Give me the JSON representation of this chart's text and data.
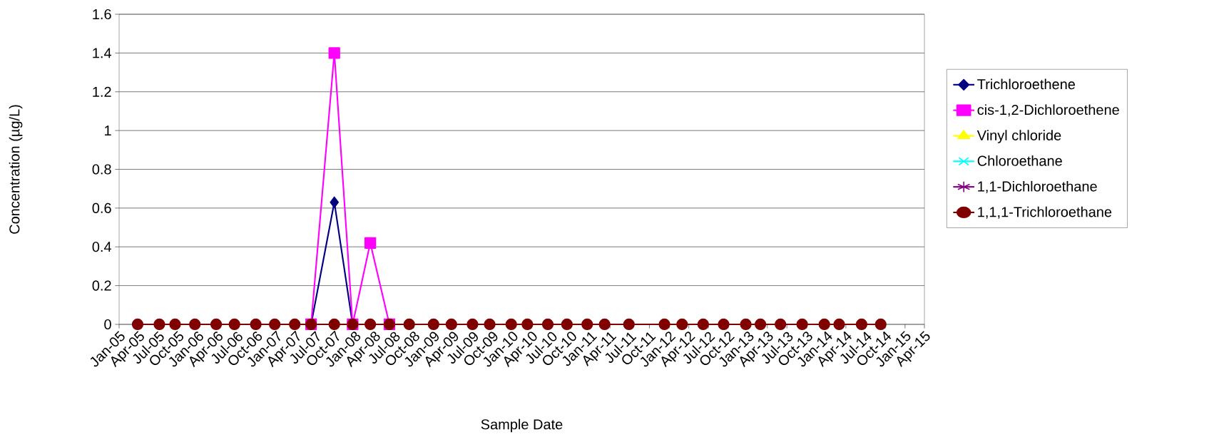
{
  "chart_data": {
    "type": "line",
    "xlabel": "Sample Date",
    "ylabel": "Concentration (µg/L)",
    "x": [
      "2005-03-28",
      "2005-07-07",
      "2005-09-18",
      "2005-12-19",
      "2006-03-28",
      "2006-06-21",
      "2006-09-28",
      "2006-12-25",
      "2007-03-28",
      "2007-06-12",
      "2007-09-28",
      "2007-12-22",
      "2008-03-13",
      "2008-06-10",
      "2008-09-10",
      "2009-01-01",
      "2009-03-25",
      "2009-07-01",
      "2009-09-19",
      "2009-12-28",
      "2010-03-13",
      "2010-06-16",
      "2010-09-13",
      "2010-12-16",
      "2011-03-07",
      "2011-06-28",
      "2011-12-10",
      "2012-03-01",
      "2012-06-07",
      "2012-09-10",
      "2012-12-22",
      "2013-02-28",
      "2013-06-01",
      "2013-09-10",
      "2013-12-22",
      "2014-03-01",
      "2014-06-13",
      "2014-09-10"
    ],
    "series": [
      {
        "name": "Trichloroethene",
        "color": "#000080",
        "marker": "diamond",
        "values": [
          null,
          null,
          null,
          null,
          null,
          null,
          null,
          null,
          null,
          0,
          0.63,
          0,
          null,
          null,
          null,
          null,
          null,
          null,
          null,
          null,
          null,
          null,
          null,
          null,
          null,
          null,
          null,
          null,
          null,
          null,
          null,
          null,
          null,
          null,
          null,
          null,
          null,
          null
        ]
      },
      {
        "name": "cis-1,2-Dichloroethene",
        "color": "#ff00ff",
        "marker": "square",
        "values": [
          null,
          null,
          null,
          null,
          null,
          null,
          null,
          null,
          null,
          0,
          1.4,
          0,
          0.42,
          0,
          null,
          null,
          null,
          null,
          null,
          null,
          null,
          null,
          null,
          null,
          null,
          null,
          null,
          null,
          null,
          null,
          null,
          null,
          null,
          null,
          null,
          null,
          null,
          null
        ]
      },
      {
        "name": "Vinyl chloride",
        "color": "#ffff00",
        "marker": "triangle",
        "values": [
          null,
          null,
          null,
          null,
          null,
          null,
          null,
          null,
          null,
          null,
          null,
          null,
          null,
          null,
          null,
          null,
          null,
          null,
          null,
          null,
          null,
          null,
          null,
          null,
          null,
          null,
          null,
          null,
          null,
          null,
          null,
          null,
          null,
          null,
          null,
          null,
          null,
          null
        ]
      },
      {
        "name": "Chloroethane",
        "color": "#00ffff",
        "marker": "cross",
        "values": [
          null,
          null,
          null,
          null,
          null,
          null,
          null,
          null,
          null,
          null,
          null,
          null,
          null,
          null,
          null,
          null,
          null,
          null,
          null,
          null,
          null,
          null,
          null,
          null,
          null,
          null,
          null,
          null,
          null,
          null,
          null,
          null,
          null,
          null,
          null,
          null,
          null,
          null
        ]
      },
      {
        "name": "1,1-Dichloroethane",
        "color": "#800080",
        "marker": "star",
        "values": [
          null,
          null,
          null,
          null,
          null,
          null,
          null,
          null,
          null,
          null,
          null,
          null,
          null,
          null,
          null,
          null,
          null,
          null,
          null,
          null,
          null,
          null,
          null,
          null,
          null,
          null,
          null,
          null,
          null,
          null,
          null,
          null,
          null,
          null,
          null,
          null,
          null,
          null
        ]
      },
      {
        "name": "1,1,1-Trichloroethane",
        "color": "#800000",
        "marker": "circle",
        "values": [
          0,
          0,
          0,
          0,
          0,
          0,
          0,
          0,
          0,
          0,
          0,
          0,
          0,
          0,
          0,
          0,
          0,
          0,
          0,
          0,
          0,
          0,
          0,
          0,
          0,
          0,
          0,
          0,
          0,
          0,
          0,
          0,
          0,
          0,
          0,
          0,
          0,
          0
        ]
      }
    ],
    "xlim": [
      "2005-01",
      "2015-04"
    ],
    "xticks": [
      {
        "value": "2005-01",
        "label": "Jan-05"
      },
      {
        "value": "2005-04",
        "label": "Apr-05"
      },
      {
        "value": "2005-07",
        "label": "Jul-05"
      },
      {
        "value": "2005-10",
        "label": "Oct-05"
      },
      {
        "value": "2006-01",
        "label": "Jan-06"
      },
      {
        "value": "2006-04",
        "label": "Apr-06"
      },
      {
        "value": "2006-07",
        "label": "Jul-06"
      },
      {
        "value": "2006-10",
        "label": "Oct-06"
      },
      {
        "value": "2007-01",
        "label": "Jan-07"
      },
      {
        "value": "2007-04",
        "label": "Apr-07"
      },
      {
        "value": "2007-07",
        "label": "Jul-07"
      },
      {
        "value": "2007-10",
        "label": "Oct-07"
      },
      {
        "value": "2008-01",
        "label": "Jan-08"
      },
      {
        "value": "2008-04",
        "label": "Apr-08"
      },
      {
        "value": "2008-07",
        "label": "Jul-08"
      },
      {
        "value": "2008-10",
        "label": "Oct-08"
      },
      {
        "value": "2009-01",
        "label": "Jan-09"
      },
      {
        "value": "2009-04",
        "label": "Apr-09"
      },
      {
        "value": "2009-07",
        "label": "Jul-09"
      },
      {
        "value": "2009-10",
        "label": "Oct-09"
      },
      {
        "value": "2010-01",
        "label": "Jan-10"
      },
      {
        "value": "2010-04",
        "label": "Apr-10"
      },
      {
        "value": "2010-07",
        "label": "Jul-10"
      },
      {
        "value": "2010-10",
        "label": "Oct-10"
      },
      {
        "value": "2011-01",
        "label": "Jan-11"
      },
      {
        "value": "2011-04",
        "label": "Apr-11"
      },
      {
        "value": "2011-07",
        "label": "Jul-11"
      },
      {
        "value": "2011-10",
        "label": "Oct-11"
      },
      {
        "value": "2012-01",
        "label": "Jan-12"
      },
      {
        "value": "2012-04",
        "label": "Apr-12"
      },
      {
        "value": "2012-07",
        "label": "Jul-12"
      },
      {
        "value": "2012-10",
        "label": "Oct-12"
      },
      {
        "value": "2013-01",
        "label": "Jan-13"
      },
      {
        "value": "2013-04",
        "label": "Apr-13"
      },
      {
        "value": "2013-07",
        "label": "Jul-13"
      },
      {
        "value": "2013-10",
        "label": "Oct-13"
      },
      {
        "value": "2014-01",
        "label": "Jan-14"
      },
      {
        "value": "2014-04",
        "label": "Apr-14"
      },
      {
        "value": "2014-07",
        "label": "Jul-14"
      },
      {
        "value": "2014-10",
        "label": "Oct-14"
      },
      {
        "value": "2015-01",
        "label": "Jan-15"
      },
      {
        "value": "2015-04",
        "label": "Apr-15"
      }
    ],
    "ylim": [
      0,
      1.6
    ],
    "yticks": [
      0,
      0.2,
      0.4,
      0.6,
      0.8,
      1,
      1.2,
      1.4,
      1.6
    ],
    "grid": "y",
    "legend": "right"
  }
}
